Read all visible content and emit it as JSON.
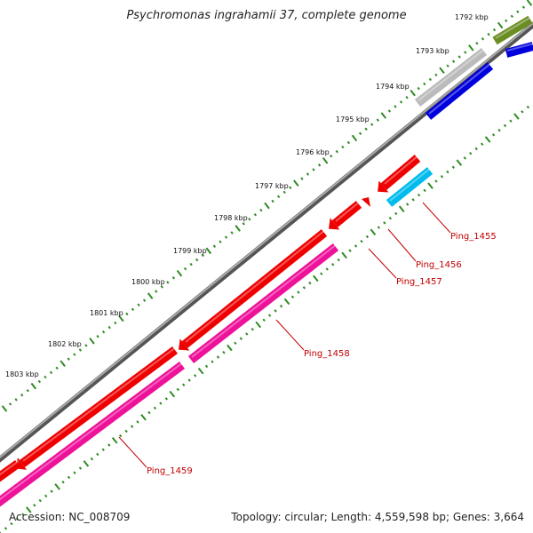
{
  "title": "Psychromonas ingrahamii 37, complete genome",
  "accession": "Accession: NC_008709",
  "summary": "Topology: circular; Length: 4,559,598 bp; Genes: 3,664",
  "kbp_labels": [
    "1792 kbp",
    "1793 kbp",
    "1794 kbp",
    "1795 kbp",
    "1796 kbp",
    "1797 kbp",
    "1798 kbp",
    "1799 kbp",
    "1800 kbp",
    "1801 kbp",
    "1802 kbp",
    "1803 kbp"
  ],
  "gene_labels": [
    "Ping_1455",
    "Ping_1456",
    "Ping_1457",
    "Ping_1458",
    "Ping_1459"
  ],
  "colors": {
    "backbone": "#808080",
    "cds_red": "#ee0000",
    "gene_pink": "#ee1199",
    "gene_blue": "#0000dd",
    "gene_cyan": "#00bbee",
    "gene_gray": "#bbbbbb",
    "gene_olive": "#6b8e23",
    "ticks": "#2e8b22",
    "label": "#c00000"
  }
}
